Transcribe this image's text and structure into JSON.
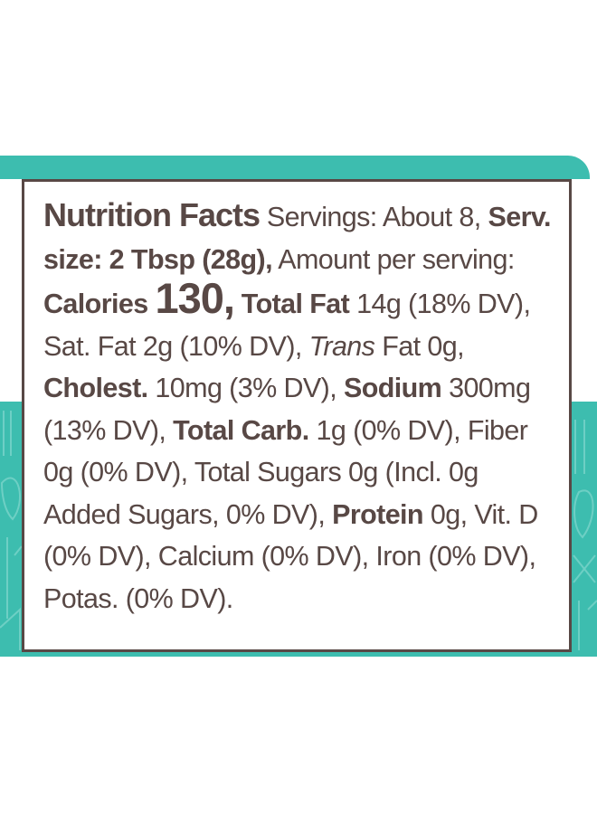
{
  "colors": {
    "teal": "#3dbdaf",
    "text": "#584845",
    "border": "#584845"
  },
  "decoration": {
    "pattern_icon": "leaf-line-pattern"
  },
  "label": {
    "title": "Nutrition Facts",
    "servings": "Servings: About 8,",
    "serving_size": "Serv. size: 2 Tbsp (28g),",
    "amount_per_serving": "Amount per serving:",
    "calories_label": "Calories",
    "calories_value": "130,",
    "total_fat_label": "Total Fat",
    "total_fat_value": "14g (18% DV), Sat. Fat 2g (10% DV),",
    "trans_label": "Trans",
    "trans_value": "Fat 0g,",
    "cholest_label": "Cholest.",
    "cholest_value": "10mg (3% DV),",
    "sodium_label": "Sodium",
    "sodium_value": "300mg (13% DV),",
    "carb_label": "Total Carb.",
    "carb_value": "1g (0% DV), Fiber 0g (0% DV), Total Sugars 0g (Incl. 0g Added Sugars, 0% DV),",
    "protein_label": "Protein",
    "protein_value": "0g, Vit. D (0% DV), Calcium (0% DV), Iron (0% DV), Potas. (0% DV)."
  }
}
